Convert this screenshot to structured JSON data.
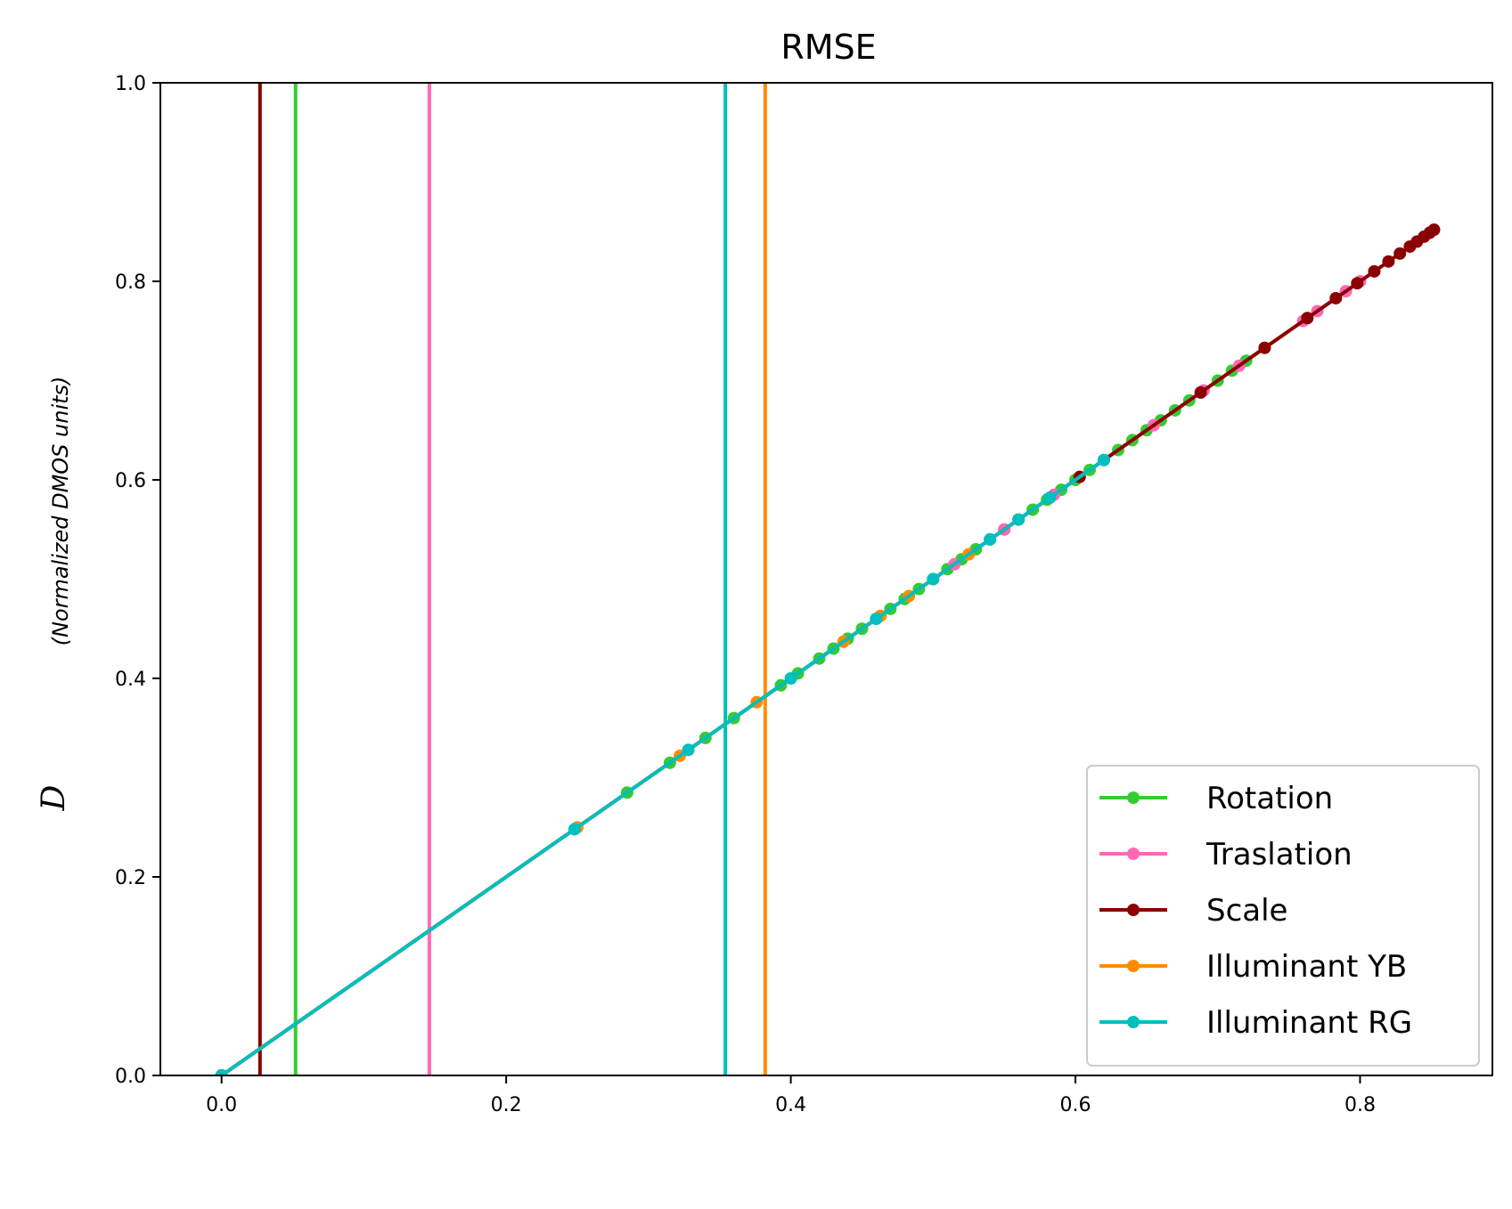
{
  "chart_data": {
    "type": "line",
    "title": "RMSE",
    "xlabel": "",
    "ylabel_symbol": "D",
    "ylabel_units": "(Normalized DMOS units)",
    "xlim": [
      -0.043,
      0.893
    ],
    "ylim": [
      0.0,
      1.0
    ],
    "xticks": [
      0.0,
      0.2,
      0.4,
      0.6,
      0.8
    ],
    "xtick_labels": [
      "0.0",
      "0.2",
      "0.4",
      "0.6",
      "0.8"
    ],
    "yticks": [
      0.0,
      0.2,
      0.4,
      0.6,
      0.8,
      1.0
    ],
    "ytick_labels": [
      "0.0",
      "0.2",
      "0.4",
      "0.6",
      "0.8",
      "1.0"
    ],
    "legend_position": "lower-right",
    "series": [
      {
        "name": "Rotation",
        "color": "#32CD32",
        "vline": 0.052,
        "x": [
          0.0,
          0.285,
          0.315,
          0.34,
          0.36,
          0.393,
          0.405,
          0.42,
          0.43,
          0.44,
          0.45,
          0.46,
          0.47,
          0.48,
          0.49,
          0.5,
          0.51,
          0.52,
          0.53,
          0.54,
          0.55,
          0.56,
          0.57,
          0.58,
          0.59,
          0.6,
          0.61,
          0.62,
          0.63,
          0.64,
          0.65,
          0.66,
          0.67,
          0.68,
          0.69,
          0.7,
          0.71,
          0.72,
          0.733
        ],
        "y": [
          0.0,
          0.285,
          0.315,
          0.34,
          0.36,
          0.393,
          0.405,
          0.42,
          0.43,
          0.44,
          0.45,
          0.46,
          0.47,
          0.48,
          0.49,
          0.5,
          0.51,
          0.52,
          0.53,
          0.54,
          0.55,
          0.56,
          0.57,
          0.58,
          0.59,
          0.6,
          0.61,
          0.62,
          0.63,
          0.64,
          0.65,
          0.66,
          0.67,
          0.68,
          0.69,
          0.7,
          0.71,
          0.72,
          0.733
        ]
      },
      {
        "name": "Traslation",
        "color": "#FF69B4",
        "vline": 0.146,
        "x": [
          0.0,
          0.515,
          0.55,
          0.585,
          0.62,
          0.655,
          0.69,
          0.715,
          0.76,
          0.77,
          0.79,
          0.8
        ],
        "y": [
          0.0,
          0.515,
          0.55,
          0.585,
          0.62,
          0.655,
          0.69,
          0.715,
          0.76,
          0.77,
          0.79,
          0.8
        ]
      },
      {
        "name": "Scale",
        "color": "#8B0000",
        "vline": 0.027,
        "x": [
          0.0,
          0.603,
          0.688,
          0.733,
          0.763,
          0.783,
          0.798,
          0.81,
          0.82,
          0.828,
          0.835,
          0.84,
          0.845,
          0.849,
          0.852
        ],
        "y": [
          0.0,
          0.603,
          0.688,
          0.733,
          0.763,
          0.783,
          0.798,
          0.81,
          0.82,
          0.828,
          0.835,
          0.84,
          0.845,
          0.849,
          0.852
        ]
      },
      {
        "name": "Illuminant YB",
        "color": "#FF8C00",
        "vline": 0.382,
        "x": [
          0.0,
          0.25,
          0.322,
          0.376,
          0.437,
          0.463,
          0.483,
          0.525
        ],
        "y": [
          0.0,
          0.25,
          0.322,
          0.376,
          0.437,
          0.463,
          0.483,
          0.525
        ]
      },
      {
        "name": "Illuminant RG",
        "color": "#00BFBF",
        "vline": 0.354,
        "x": [
          0.0,
          0.248,
          0.328,
          0.4,
          0.46,
          0.5,
          0.54,
          0.56,
          0.582,
          0.62
        ],
        "y": [
          0.0,
          0.248,
          0.328,
          0.4,
          0.46,
          0.5,
          0.54,
          0.56,
          0.582,
          0.62
        ]
      }
    ]
  }
}
